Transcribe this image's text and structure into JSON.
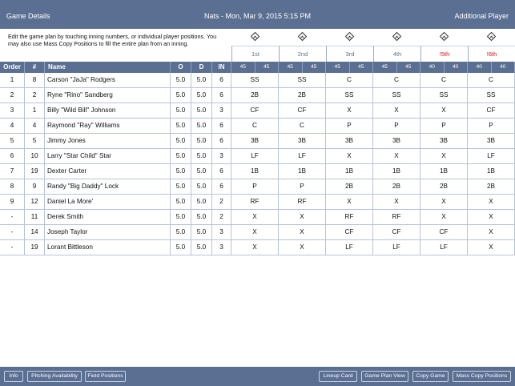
{
  "nav": {
    "left": "Game Details",
    "title": "Nats - Mon, Mar 9, 2015 5:15 PM",
    "right": "Additional Player"
  },
  "instructions": "Edit the game plan by touching inning numbers, or individual player positions. You may also use Mass Copy Positions to fill the entire plan from an inning.",
  "innings": [
    {
      "label": "1st",
      "red": false
    },
    {
      "label": "2nd",
      "red": false
    },
    {
      "label": "3rd",
      "red": false
    },
    {
      "label": "4th",
      "red": false
    },
    {
      "label": "!5th",
      "red": true
    },
    {
      "label": "!6th",
      "red": true
    }
  ],
  "columns": {
    "order": "Order",
    "num": "#",
    "name": "Name",
    "o": "O",
    "d": "D",
    "in": "IN"
  },
  "half_innings": [
    "45",
    "45",
    "45",
    "45",
    "45",
    "45",
    "45",
    "45",
    "40",
    "40",
    "40",
    "40"
  ],
  "players": [
    {
      "order": "1",
      "num": "8",
      "name": "Carson \"JaJa\" Rodgers",
      "o": "5.0",
      "d": "5.0",
      "in": "6",
      "pos": [
        "SS",
        "SS",
        "C",
        "C",
        "C",
        "C"
      ]
    },
    {
      "order": "2",
      "num": "2",
      "name": "Ryne \"Rino\" Sandberg",
      "o": "5.0",
      "d": "5.0",
      "in": "6",
      "pos": [
        "2B",
        "2B",
        "SS",
        "SS",
        "SS",
        "SS"
      ]
    },
    {
      "order": "3",
      "num": "1",
      "name": "Billy \"Wild Bill\" Johnson",
      "o": "5.0",
      "d": "5.0",
      "in": "3",
      "pos": [
        "CF",
        "CF",
        "X",
        "X",
        "X",
        "CF"
      ]
    },
    {
      "order": "4",
      "num": "4",
      "name": "Raymond \"Ray\" Williams",
      "o": "5.0",
      "d": "5.0",
      "in": "6",
      "pos": [
        "C",
        "C",
        "P",
        "P",
        "P",
        "P"
      ]
    },
    {
      "order": "5",
      "num": "5",
      "name": "Jimmy Jones",
      "o": "5.0",
      "d": "5.0",
      "in": "6",
      "pos": [
        "3B",
        "3B",
        "3B",
        "3B",
        "3B",
        "3B"
      ]
    },
    {
      "order": "6",
      "num": "10",
      "name": "Larry \"Star Child\" Star",
      "o": "5.0",
      "d": "5.0",
      "in": "3",
      "pos": [
        "LF",
        "LF",
        "X",
        "X",
        "X",
        "LF"
      ]
    },
    {
      "order": "7",
      "num": "19",
      "name": "Dexter Carter",
      "o": "5.0",
      "d": "5.0",
      "in": "6",
      "pos": [
        "1B",
        "1B",
        "1B",
        "1B",
        "1B",
        "1B"
      ]
    },
    {
      "order": "8",
      "num": "9",
      "name": "Randy \"Big Daddy\" Lock",
      "o": "5.0",
      "d": "5.0",
      "in": "6",
      "pos": [
        "P",
        "P",
        "2B",
        "2B",
        "2B",
        "2B"
      ]
    },
    {
      "order": "9",
      "num": "12",
      "name": "Daniel La More'",
      "o": "5.0",
      "d": "5.0",
      "in": "2",
      "pos": [
        "RF",
        "RF",
        "X",
        "X",
        "X",
        "X"
      ]
    },
    {
      "order": "-",
      "num": "11",
      "name": "Derek Smith",
      "o": "5.0",
      "d": "5.0",
      "in": "2",
      "pos": [
        "X",
        "X",
        "RF",
        "RF",
        "X",
        "X"
      ]
    },
    {
      "order": "-",
      "num": "14",
      "name": "Joseph Taylor",
      "o": "5.0",
      "d": "5.0",
      "in": "3",
      "pos": [
        "X",
        "X",
        "CF",
        "CF",
        "CF",
        "X"
      ]
    },
    {
      "order": "-",
      "num": "19",
      "name": "Lorant Bittleson",
      "o": "5.0",
      "d": "5.0",
      "in": "3",
      "pos": [
        "X",
        "X",
        "LF",
        "LF",
        "LF",
        "X"
      ]
    }
  ],
  "footer": {
    "info": "Info",
    "pitching": "Pitching Availability",
    "field": "Field Positions",
    "lineup": "Lineup Card",
    "plan_view": "Game Plan View",
    "copy_game": "Copy Game",
    "mass_copy": "Mass Copy Positions"
  },
  "colors": {
    "bar": "#5b6f93",
    "grid_line": "#b7c2d8",
    "warning": "#e01010"
  },
  "icons": {
    "inning": "baseball-diamond-icon"
  }
}
